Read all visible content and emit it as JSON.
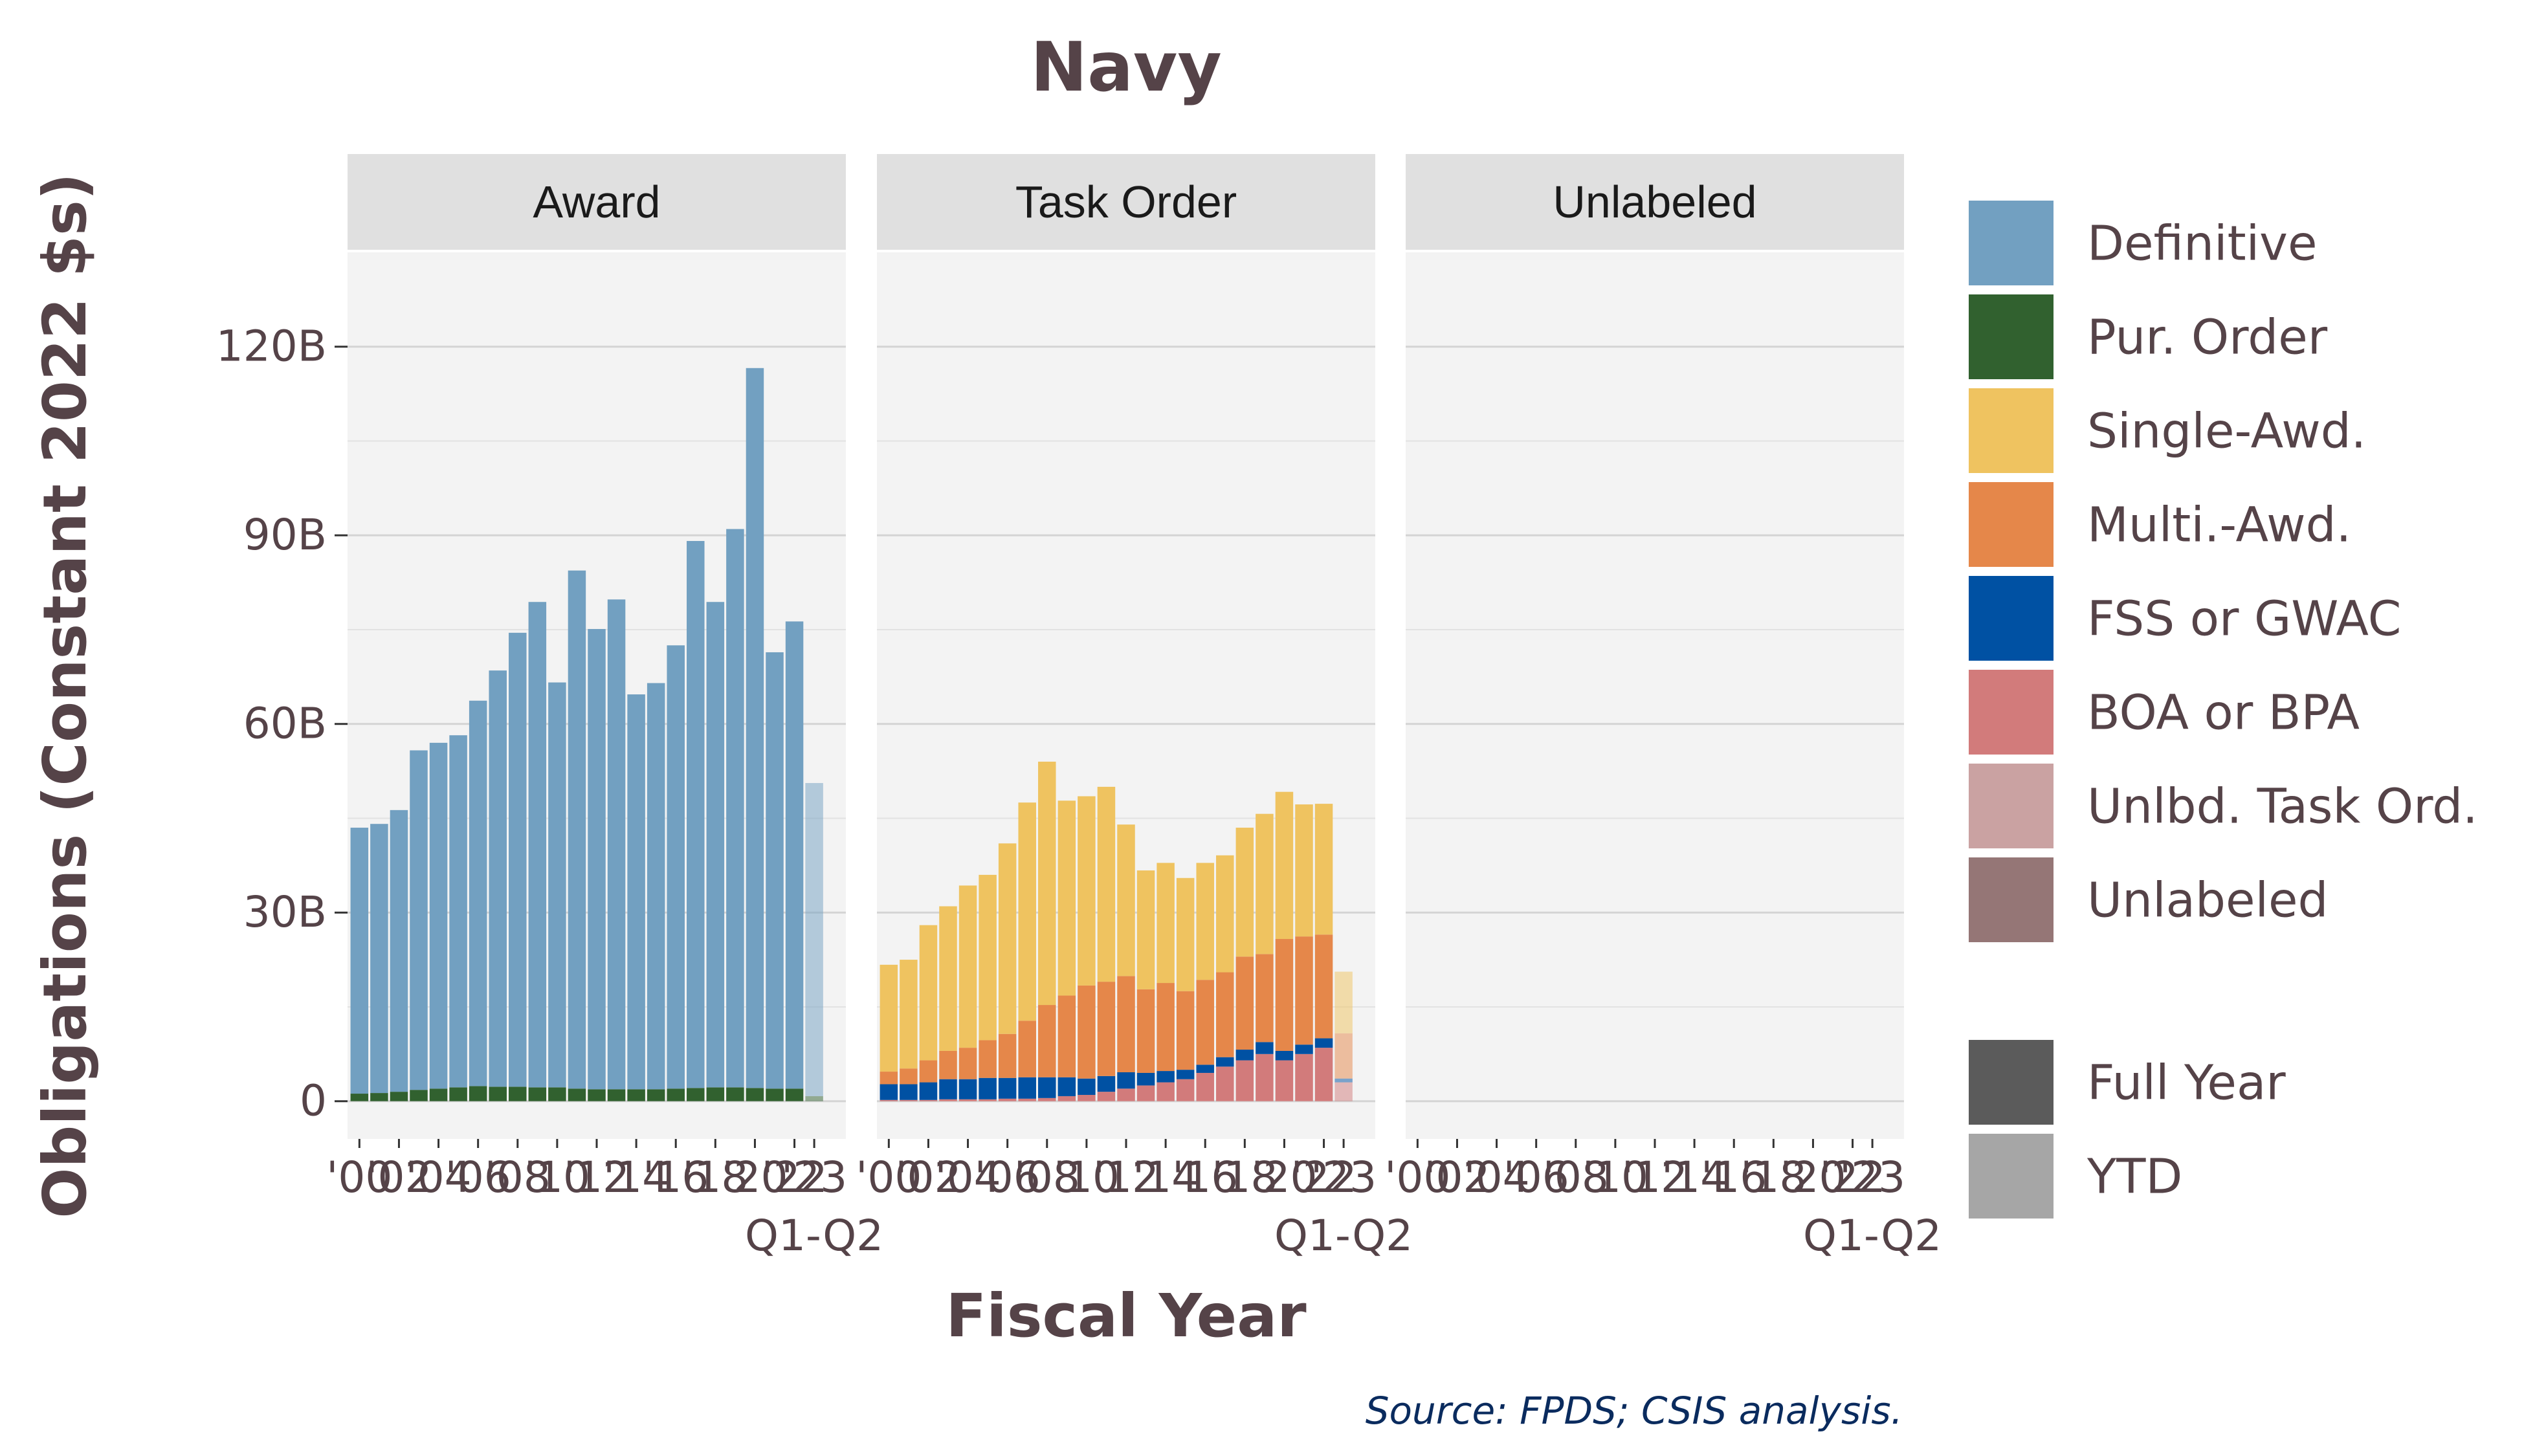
{
  "chart_data": {
    "type": "bar",
    "stacked": true,
    "title": "Navy",
    "xlabel": "Fiscal Year",
    "ylabel": "Obligations (Constant 2022 $s)",
    "source": "Source: FPDS; CSIS analysis.",
    "ylim": [
      -6,
      135
    ],
    "yticks": [
      {
        "value": 0,
        "label": "0"
      },
      {
        "value": 30,
        "label": "30B"
      },
      {
        "value": 60,
        "label": "60B"
      },
      {
        "value": 90,
        "label": "90B"
      },
      {
        "value": 120,
        "label": "120B"
      }
    ],
    "x_tick_labels": [
      "'00",
      "'02",
      "'04",
      "'06",
      "'08",
      "'10",
      "'12",
      "'14",
      "'16",
      "'18",
      "'20",
      "'22",
      "'23"
    ],
    "ytd_label": "Q1-Q2",
    "years": [
      "2000",
      "2001",
      "2002",
      "2003",
      "2004",
      "2005",
      "2006",
      "2007",
      "2008",
      "2009",
      "2010",
      "2011",
      "2012",
      "2013",
      "2014",
      "2015",
      "2016",
      "2017",
      "2018",
      "2019",
      "2020",
      "2021",
      "2022",
      "2023"
    ],
    "facets": [
      {
        "label": "Award",
        "series": [
          {
            "name": "Pur. Order",
            "values": [
              1.2,
              1.3,
              1.5,
              1.8,
              2.0,
              2.2,
              2.4,
              2.3,
              2.3,
              2.2,
              2.2,
              2.0,
              1.9,
              1.9,
              1.9,
              1.9,
              2.0,
              2.1,
              2.2,
              2.2,
              2.1,
              2.0,
              2.0,
              0.8
            ]
          },
          {
            "name": "Definitive",
            "values": [
              42.3,
              42.8,
              44.8,
              54.0,
              55.0,
              56.0,
              61.3,
              66.2,
              72.2,
              77.2,
              64.4,
              82.4,
              73.2,
              77.9,
              62.8,
              64.6,
              70.5,
              87.0,
              77.2,
              88.8,
              114.5,
              69.4,
              74.3,
              49.8
            ]
          }
        ]
      },
      {
        "label": "Task Order",
        "series": [
          {
            "name": "BOA or BPA",
            "values": [
              0.2,
              0.2,
              0.2,
              0.3,
              0.3,
              0.3,
              0.4,
              0.4,
              0.5,
              0.8,
              1.0,
              1.5,
              2.0,
              2.5,
              3.0,
              3.5,
              4.5,
              5.5,
              6.5,
              7.5,
              6.5,
              7.5,
              8.5,
              3.0
            ]
          },
          {
            "name": "FSS or GWAC",
            "values": [
              2.5,
              2.5,
              2.8,
              3.2,
              3.2,
              3.4,
              3.3,
              3.4,
              3.3,
              3.0,
              2.6,
              2.5,
              2.6,
              2.0,
              1.8,
              1.5,
              1.3,
              1.5,
              1.7,
              1.9,
              1.5,
              1.5,
              1.5,
              0.6
            ]
          },
          {
            "name": "Multi.-Awd.",
            "values": [
              2.0,
              2.5,
              3.5,
              4.5,
              5.0,
              6.0,
              7.0,
              9.0,
              11.5,
              13.0,
              14.8,
              15.0,
              15.3,
              13.3,
              14.0,
              12.5,
              13.5,
              13.5,
              14.8,
              14.0,
              17.8,
              17.2,
              16.5,
              7.2
            ]
          },
          {
            "name": "Single-Awd.",
            "values": [
              17.0,
              17.3,
              21.5,
              23.0,
              25.8,
              26.3,
              30.3,
              34.7,
              38.7,
              31.0,
              30.1,
              31.0,
              24.1,
              18.9,
              19.1,
              18.0,
              18.6,
              18.6,
              20.5,
              22.3,
              23.4,
              21.0,
              20.8,
              9.8
            ]
          }
        ]
      },
      {
        "label": "Unlabeled",
        "series": []
      }
    ],
    "legend": {
      "placement": "right",
      "series": [
        {
          "name": "Definitive",
          "color": "#72a0c1"
        },
        {
          "name": "Pur. Order",
          "color": "#31612f"
        },
        {
          "name": "Single-Awd.",
          "color": "#efc360"
        },
        {
          "name": "Multi.-Awd.",
          "color": "#e5874a"
        },
        {
          "name": "FSS or GWAC",
          "color": "#0051a3"
        },
        {
          "name": "BOA or BPA",
          "color": "#d27b7b"
        },
        {
          "name": "Unlbd. Task Ord.",
          "color": "#caa2a2"
        },
        {
          "name": "Unlabeled",
          "color": "#957676"
        }
      ],
      "periods": [
        {
          "name": "Full Year",
          "color": "#5b5b5b"
        },
        {
          "name": "YTD",
          "color": "#a6a6a6"
        }
      ]
    },
    "ytd_opacity": 0.5,
    "grid": true
  }
}
